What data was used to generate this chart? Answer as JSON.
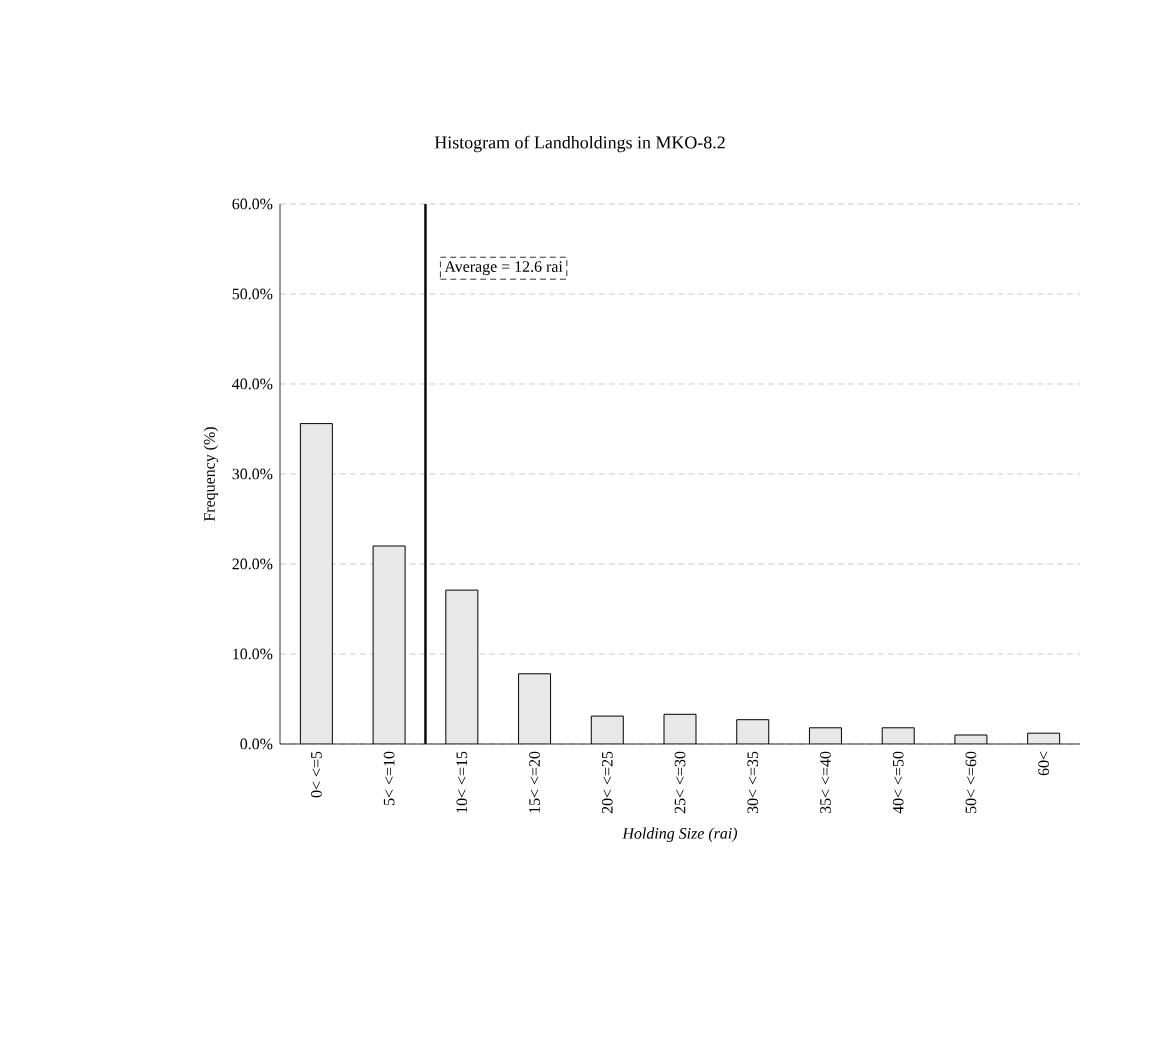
{
  "chart_data": {
    "type": "bar",
    "title": "Histogram of Landholdings in MKO-8.2",
    "xlabel": "*Holding Size (rai)*",
    "ylabel": "Frequency (%)",
    "categories": [
      "0< <=5",
      "5< <=10",
      "10< <=15",
      "15< <=20",
      "20< <=25",
      "25< <=30",
      "30< <=35",
      "35< <=40",
      "40< <=50",
      "50< <=60",
      "60<"
    ],
    "values": [
      35.6,
      22.0,
      17.1,
      7.8,
      3.1,
      3.3,
      2.7,
      1.8,
      1.8,
      1.0,
      1.2
    ],
    "color": "#e8e8e8",
    "ylim": [
      0,
      60
    ],
    "yticks": [
      {
        "value": 0,
        "label": "0.0%"
      },
      {
        "value": 10,
        "label": "10.0%"
      },
      {
        "value": 20,
        "label": "20.0%"
      },
      {
        "value": 30,
        "label": "30.0%"
      },
      {
        "value": 40,
        "label": "40.0%"
      },
      {
        "value": 50,
        "label": "50.0%"
      },
      {
        "value": 60,
        "label": "60.0%"
      }
    ],
    "grid": "y",
    "ref_lines": [
      {
        "axis": "x",
        "value": "5< <=10",
        "label": "Average = 12.6 rai"
      }
    ]
  }
}
